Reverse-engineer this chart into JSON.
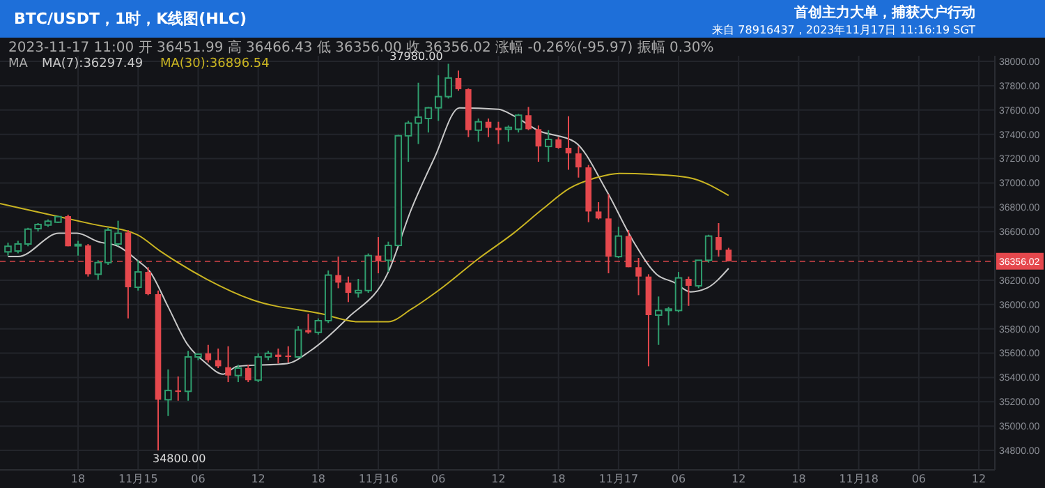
{
  "chart_data": {
    "type": "candlestick",
    "title": "BTC/USDT，1时，K线图(HLC)",
    "subtitle": "首创主力大单，捕获大户行动",
    "annotations": [
      "来自 78916437，2023年11月17日 11:16:19 SGT",
      "2023-11-17 11:00 开 36451.99 高 36466.43 低 36356.00 收 36356.02 涨幅 -0.26%(-95.97) 振幅 0.30%",
      "MA",
      {
        "text": "37980.00",
        "x": "2023-11-16T07:00",
        "y": 37980
      },
      {
        "text": "34800.00",
        "x": "2023-11-15T02:00",
        "y": 34800
      }
    ],
    "x": [
      "2023-11-14T11:00",
      "2023-11-14T12:00",
      "2023-11-14T13:00",
      "2023-11-14T14:00",
      "2023-11-14T15:00",
      "2023-11-14T16:00",
      "2023-11-14T17:00",
      "2023-11-14T18:00",
      "2023-11-14T19:00",
      "2023-11-14T20:00",
      "2023-11-14T21:00",
      "2023-11-14T22:00",
      "2023-11-14T23:00",
      "2023-11-15T00:00",
      "2023-11-15T01:00",
      "2023-11-15T02:00",
      "2023-11-15T03:00",
      "2023-11-15T04:00",
      "2023-11-15T05:00",
      "2023-11-15T06:00",
      "2023-11-15T07:00",
      "2023-11-15T08:00",
      "2023-11-15T09:00",
      "2023-11-15T10:00",
      "2023-11-15T11:00",
      "2023-11-15T12:00",
      "2023-11-15T13:00",
      "2023-11-15T14:00",
      "2023-11-15T15:00",
      "2023-11-15T16:00",
      "2023-11-15T17:00",
      "2023-11-15T18:00",
      "2023-11-15T19:00",
      "2023-11-15T20:00",
      "2023-11-15T21:00",
      "2023-11-15T22:00",
      "2023-11-15T23:00",
      "2023-11-16T00:00",
      "2023-11-16T01:00",
      "2023-11-16T02:00",
      "2023-11-16T03:00",
      "2023-11-16T04:00",
      "2023-11-16T05:00",
      "2023-11-16T06:00",
      "2023-11-16T07:00",
      "2023-11-16T08:00",
      "2023-11-16T09:00",
      "2023-11-16T10:00",
      "2023-11-16T11:00",
      "2023-11-16T12:00",
      "2023-11-16T13:00",
      "2023-11-16T14:00",
      "2023-11-16T15:00",
      "2023-11-16T16:00",
      "2023-11-16T17:00",
      "2023-11-16T18:00",
      "2023-11-16T19:00",
      "2023-11-16T20:00",
      "2023-11-16T21:00",
      "2023-11-16T22:00",
      "2023-11-16T23:00",
      "2023-11-17T00:00",
      "2023-11-17T01:00",
      "2023-11-17T02:00",
      "2023-11-17T03:00",
      "2023-11-17T04:00",
      "2023-11-17T05:00",
      "2023-11-17T06:00",
      "2023-11-17T07:00",
      "2023-11-17T08:00",
      "2023-11-17T09:00",
      "2023-11-17T10:00",
      "2023-11-17T11:00"
    ],
    "ohlc": [
      [
        36433,
        36509,
        36402,
        36479
      ],
      [
        36440,
        36524,
        36421,
        36498
      ],
      [
        36498,
        36631,
        36479,
        36620
      ],
      [
        36624,
        36670,
        36601,
        36658
      ],
      [
        36654,
        36700,
        36639,
        36685
      ],
      [
        36677,
        36727,
        36670,
        36723
      ],
      [
        36727,
        36739,
        36479,
        36479
      ],
      [
        36486,
        36524,
        36402,
        36494
      ],
      [
        36486,
        36498,
        36230,
        36249
      ],
      [
        36249,
        36364,
        36203,
        36345
      ],
      [
        36345,
        36631,
        36326,
        36612
      ],
      [
        36498,
        36689,
        36479,
        36586
      ],
      [
        36593,
        36612,
        35886,
        36142
      ],
      [
        36142,
        36364,
        36115,
        36268
      ],
      [
        36268,
        36307,
        36077,
        36085
      ],
      [
        36085,
        36115,
        34800,
        35217
      ],
      [
        35217,
        35466,
        35083,
        35293
      ],
      [
        35293,
        35408,
        35209,
        35286
      ],
      [
        35286,
        35619,
        35209,
        35569
      ],
      [
        35569,
        35599,
        35542,
        35592
      ],
      [
        35599,
        35668,
        35523,
        35542
      ],
      [
        35542,
        35638,
        35477,
        35492
      ],
      [
        35484,
        35657,
        35362,
        35416
      ],
      [
        35416,
        35504,
        35362,
        35477
      ],
      [
        35477,
        35504,
        35362,
        35378
      ],
      [
        35378,
        35599,
        35362,
        35569
      ],
      [
        35569,
        35619,
        35542,
        35599
      ],
      [
        35588,
        35638,
        35515,
        35569
      ],
      [
        35580,
        35657,
        35523,
        35569
      ],
      [
        35569,
        35821,
        35561,
        35790
      ],
      [
        35790,
        35924,
        35760,
        35771
      ],
      [
        35771,
        35886,
        35752,
        35867
      ],
      [
        35867,
        36280,
        35848,
        36242
      ],
      [
        36242,
        36394,
        36134,
        36180
      ],
      [
        36180,
        36230,
        36020,
        36096
      ],
      [
        36096,
        36211,
        36058,
        36115
      ],
      [
        36115,
        36420,
        36096,
        36402
      ],
      [
        36402,
        36555,
        36257,
        36356
      ],
      [
        36364,
        36517,
        36268,
        36486
      ],
      [
        36486,
        37396,
        36479,
        37388
      ],
      [
        37388,
        37511,
        37174,
        37492
      ],
      [
        37492,
        37824,
        37320,
        37541
      ],
      [
        37530,
        37625,
        37415,
        37618
      ],
      [
        37618,
        37885,
        37511,
        37710
      ],
      [
        37710,
        37980,
        37694,
        37863
      ],
      [
        37863,
        37924,
        37759,
        37771
      ],
      [
        37771,
        37778,
        37377,
        37434
      ],
      [
        37434,
        37530,
        37339,
        37503
      ],
      [
        37503,
        37530,
        37377,
        37453
      ],
      [
        37453,
        37503,
        37320,
        37434
      ],
      [
        37442,
        37473,
        37339,
        37457
      ],
      [
        37442,
        37568,
        37415,
        37557
      ],
      [
        37557,
        37625,
        37434,
        37442
      ],
      [
        37442,
        37473,
        37174,
        37300
      ],
      [
        37300,
        37434,
        37174,
        37358
      ],
      [
        37358,
        37377,
        37281,
        37289
      ],
      [
        37289,
        37549,
        37109,
        37243
      ],
      [
        37243,
        37300,
        37044,
        37128
      ],
      [
        37128,
        37148,
        36677,
        36765
      ],
      [
        36765,
        36842,
        36700,
        36708
      ],
      [
        36708,
        36907,
        36257,
        36394
      ],
      [
        36394,
        36639,
        36383,
        36563
      ],
      [
        36563,
        36612,
        36307,
        36307
      ],
      [
        36307,
        36383,
        36077,
        36230
      ],
      [
        36230,
        36249,
        35492,
        35913
      ],
      [
        35913,
        36066,
        35668,
        35951
      ],
      [
        35951,
        35981,
        35829,
        35963
      ],
      [
        35951,
        36268,
        35936,
        36219
      ],
      [
        36211,
        36230,
        35989,
        36154
      ],
      [
        36154,
        36364,
        36134,
        36364
      ],
      [
        36364,
        36574,
        36345,
        36563
      ],
      [
        36555,
        36670,
        36394,
        36448
      ],
      [
        36451.99,
        36466.43,
        36356.0,
        36356.02
      ]
    ],
    "colors": [
      "#2f9e6e",
      "#2f9e6e",
      "#2f9e6e",
      "#2f9e6e",
      "#2f9e6e",
      "#2f9e6e",
      "#e5484d",
      "#2f9e6e",
      "#e5484d",
      "#2f9e6e",
      "#2f9e6e",
      "#2f9e6e",
      "#e5484d",
      "#2f9e6e",
      "#e5484d",
      "#e5484d",
      "#2f9e6e",
      "#e5484d",
      "#2f9e6e",
      "#2f9e6e",
      "#e5484d",
      "#e5484d",
      "#e5484d",
      "#2f9e6e",
      "#e5484d",
      "#2f9e6e",
      "#2f9e6e",
      "#e5484d",
      "#e5484d",
      "#2f9e6e",
      "#e5484d",
      "#2f9e6e",
      "#2f9e6e",
      "#e5484d",
      "#e5484d",
      "#2f9e6e",
      "#2f9e6e",
      "#e5484d",
      "#2f9e6e",
      "#2f9e6e",
      "#2f9e6e",
      "#2f9e6e",
      "#2f9e6e",
      "#2f9e6e",
      "#2f9e6e",
      "#e5484d",
      "#e5484d",
      "#2f9e6e",
      "#e5484d",
      "#e5484d",
      "#2f9e6e",
      "#2f9e6e",
      "#e5484d",
      "#e5484d",
      "#2f9e6e",
      "#e5484d",
      "#e5484d",
      "#e5484d",
      "#e5484d",
      "#e5484d",
      "#e5484d",
      "#2f9e6e",
      "#e5484d",
      "#e5484d",
      "#e5484d",
      "#2f9e6e",
      "#2f9e6e",
      "#2f9e6e",
      "#e5484d",
      "#2f9e6e",
      "#2f9e6e",
      "#e5484d",
      "#e5484d"
    ],
    "series": [
      {
        "type": "line",
        "name": "MA(7):36297.49",
        "color": "#c8c8c8",
        "x": [
          "2023-11-14T11:00",
          "2023-11-14T12:00",
          "2023-11-14T16:06",
          "2023-11-14T17:54",
          "2023-11-14T20:00",
          "2023-11-14T22:00",
          "2023-11-14T23:54",
          "2023-11-15T01:12",
          "2023-11-15T03:00",
          "2023-11-15T04:54",
          "2023-11-15T06:42",
          "2023-11-15T08:30",
          "2023-11-15T09:54",
          "2023-11-15T14:54",
          "2023-11-15T17:12",
          "2023-11-15T20:54",
          "2023-11-16T01:00",
          "2023-11-16T03:18",
          "2023-11-16T05:36",
          "2023-11-16T08:06",
          "2023-11-16T12:00",
          "2023-11-16T13:36",
          "2023-11-16T15:54",
          "2023-11-16T19:36",
          "2023-11-16T22:48",
          "2023-11-17T01:30",
          "2023-11-17T03:48",
          "2023-11-17T05:36",
          "2023-11-17T07:12",
          "2023-11-17T08:48",
          "2023-11-17T11:00"
        ],
        "values": [
          36394,
          36394,
          36586,
          36586,
          36517,
          36479,
          36364,
          36268,
          35981,
          35676,
          35523,
          35427,
          35492,
          35515,
          35619,
          35886,
          36268,
          36784,
          37205,
          37618,
          37606,
          37549,
          37434,
          37339,
          36937,
          36517,
          36249,
          36180,
          36104,
          36134,
          36297
        ]
      },
      {
        "type": "line",
        "name": "MA(30):36896.54",
        "color": "#c9b422",
        "x": [
          "2023-11-14T10:12",
          "2023-11-14T14:48",
          "2023-11-14T19:24",
          "2023-11-14T23:54",
          "2023-11-15T02:12",
          "2023-11-15T06:48",
          "2023-11-15T11:24",
          "2023-11-15T18:18",
          "2023-11-15T21:54",
          "2023-11-16T01:00",
          "2023-11-16T03:18",
          "2023-11-16T06:00",
          "2023-11-16T10:06",
          "2023-11-16T13:30",
          "2023-11-16T16:24",
          "2023-11-16T19:06",
          "2023-11-16T21:48",
          "2023-11-17T00:06",
          "2023-11-17T03:18",
          "2023-11-17T07:00",
          "2023-11-17T11:00"
        ],
        "values": [
          36830,
          36746,
          36662,
          36574,
          36440,
          36211,
          36039,
          35924,
          35859,
          35859,
          35962,
          36115,
          36383,
          36586,
          36784,
          36956,
          37044,
          37079,
          37071,
          37044,
          36897
        ]
      }
    ],
    "ref_lines": [
      {
        "axis": "y",
        "value": 36356.02,
        "label": "36356.02",
        "color": "#e5484d",
        "line_style": "dashed"
      }
    ],
    "xlim": [
      "2023-11-14T10:12",
      "2023-11-18T13:36"
    ],
    "xticks": [
      {
        "value": "2023-11-14T18:00",
        "label": "18"
      },
      {
        "value": "2023-11-15T00:00",
        "label": "11月15"
      },
      {
        "value": "2023-11-15T06:00",
        "label": "06"
      },
      {
        "value": "2023-11-15T12:00",
        "label": "12"
      },
      {
        "value": "2023-11-15T18:00",
        "label": "18"
      },
      {
        "value": "2023-11-16T00:00",
        "label": "11月16"
      },
      {
        "value": "2023-11-16T06:00",
        "label": "06"
      },
      {
        "value": "2023-11-16T12:00",
        "label": "12"
      },
      {
        "value": "2023-11-16T18:00",
        "label": "18"
      },
      {
        "value": "2023-11-17T00:00",
        "label": "11月17"
      },
      {
        "value": "2023-11-17T06:00",
        "label": "06"
      },
      {
        "value": "2023-11-17T12:00",
        "label": "12"
      },
      {
        "value": "2023-11-17T18:00",
        "label": "18"
      },
      {
        "value": "2023-11-18T00:00",
        "label": "11月18"
      },
      {
        "value": "2023-11-18T06:00",
        "label": "06"
      },
      {
        "value": "2023-11-18T12:00",
        "label": "12"
      }
    ],
    "ylim": [
      34640,
      38046
    ],
    "yticks": [
      {
        "value": 34800,
        "label": "34800.00"
      },
      {
        "value": 35000,
        "label": "35000.00"
      },
      {
        "value": 35200,
        "label": "35200.00"
      },
      {
        "value": 35400,
        "label": "35400.00"
      },
      {
        "value": 35600,
        "label": "35600.00"
      },
      {
        "value": 35800,
        "label": "35800.00"
      },
      {
        "value": 36000,
        "label": "36000.00"
      },
      {
        "value": 36200,
        "label": "36200.00"
      },
      {
        "value": 36400,
        "label": null
      },
      {
        "value": 36600,
        "label": "36600.00"
      },
      {
        "value": 36800,
        "label": "36800.00"
      },
      {
        "value": 37000,
        "label": "37000.00"
      },
      {
        "value": 37200,
        "label": "37200.00"
      },
      {
        "value": 37400,
        "label": "37400.00"
      },
      {
        "value": 37600,
        "label": "37600.00"
      },
      {
        "value": 37800,
        "label": "37800.00"
      },
      {
        "value": 38000,
        "label": "38000.00"
      }
    ],
    "grid": true,
    "legend": "top left"
  }
}
